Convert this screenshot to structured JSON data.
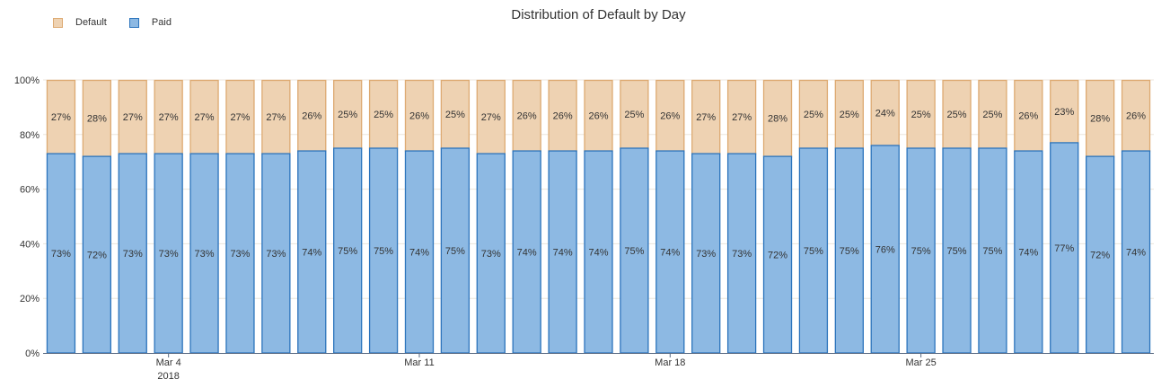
{
  "chart_data": {
    "type": "bar",
    "stacked": true,
    "title": "Distribution of Default by Day",
    "xlabel": "",
    "ylabel": "",
    "ylim": [
      0,
      100
    ],
    "y_ticks": [
      "0%",
      "20%",
      "40%",
      "60%",
      "80%",
      "100%"
    ],
    "x_tick_labels": [
      {
        "index": 3,
        "label": "Mar 4",
        "sublabel": "2018"
      },
      {
        "index": 10,
        "label": "Mar 11",
        "sublabel": ""
      },
      {
        "index": 17,
        "label": "Mar 18",
        "sublabel": ""
      },
      {
        "index": 24,
        "label": "Mar 25",
        "sublabel": ""
      }
    ],
    "legend_position": "top-left",
    "series": [
      {
        "name": "Default",
        "color": "#EED2B2",
        "edge": "#DDAA72",
        "values": [
          27,
          28,
          27,
          27,
          27,
          27,
          27,
          26,
          25,
          25,
          26,
          25,
          27,
          26,
          26,
          26,
          25,
          26,
          27,
          27,
          28,
          25,
          25,
          24,
          25,
          25,
          25,
          26,
          23,
          28,
          26
        ]
      },
      {
        "name": "Paid",
        "color": "#8DB9E3",
        "edge": "#2C74BC",
        "values": [
          73,
          72,
          73,
          73,
          73,
          73,
          73,
          74,
          75,
          75,
          74,
          75,
          73,
          74,
          74,
          74,
          75,
          74,
          73,
          73,
          72,
          75,
          75,
          76,
          75,
          75,
          75,
          74,
          77,
          72,
          74
        ]
      }
    ]
  }
}
